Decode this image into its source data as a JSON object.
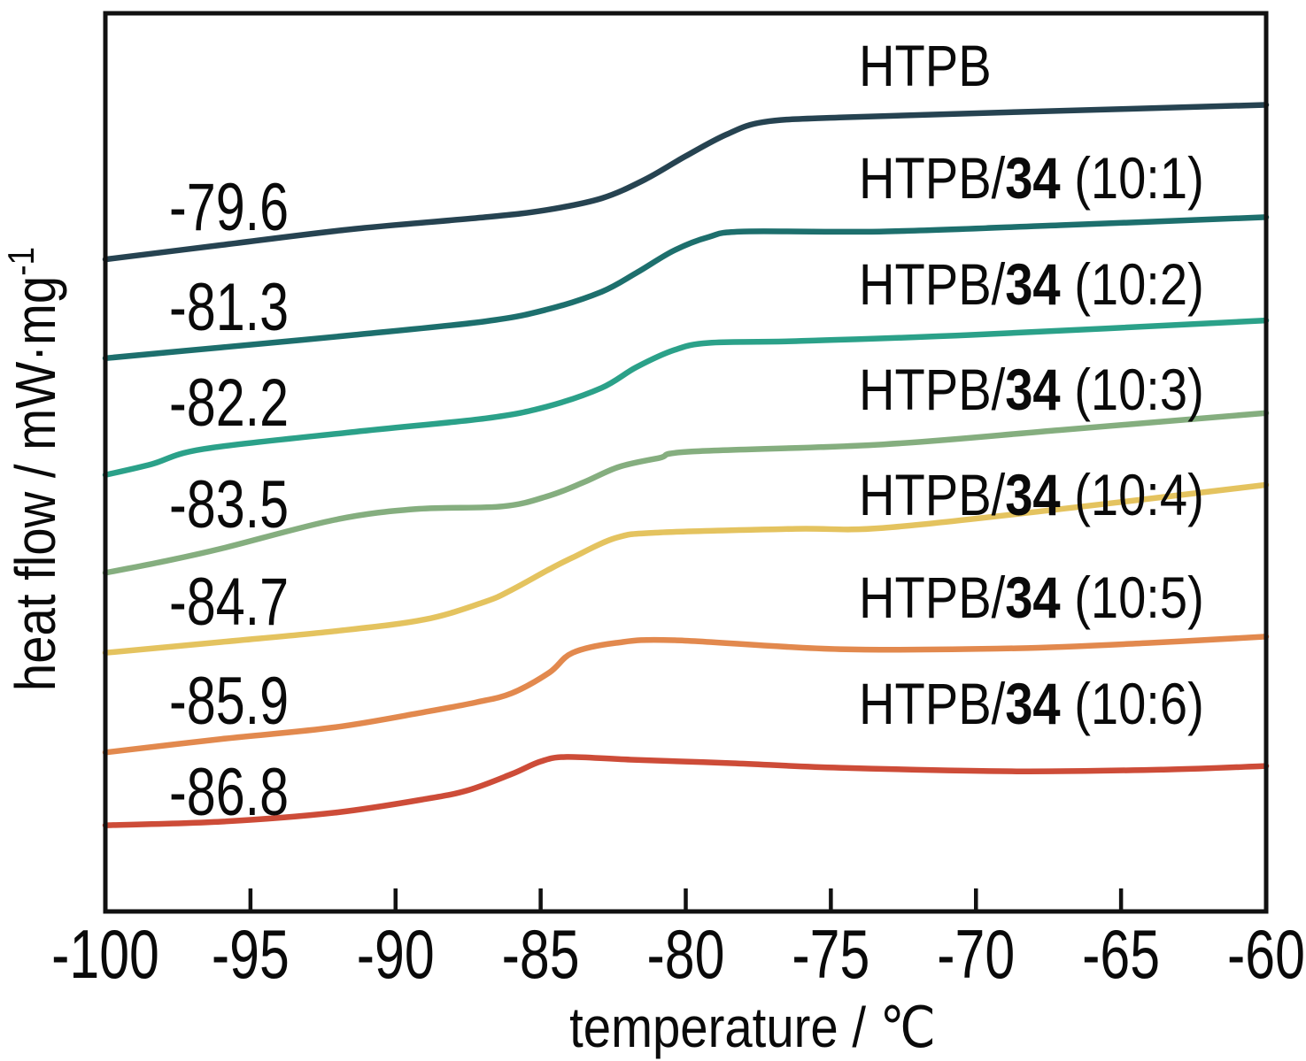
{
  "figure_title": "",
  "axis": {
    "x_label_main": "temperature / ",
    "x_label_unit": "℃",
    "y_label_main": "heat flow / mW·mg",
    "y_label_sup": "-1",
    "x_tick_labels": [
      "-100",
      "-95",
      "-90",
      "-85",
      "-80",
      "-75",
      "-70",
      "-65",
      "-60"
    ]
  },
  "tg_labels": [
    {
      "text": "-79.6"
    },
    {
      "text": "-81.3"
    },
    {
      "text": "-82.2"
    },
    {
      "text": "-83.5"
    },
    {
      "text": "-84.7"
    },
    {
      "text": "-85.9"
    },
    {
      "text": "-86.8"
    }
  ],
  "series_labels": [
    {
      "prefix": "HTPB",
      "bold": "",
      "suffix": ""
    },
    {
      "prefix": "HTPB/",
      "bold": "34",
      "suffix": " (10:1)"
    },
    {
      "prefix": "HTPB/",
      "bold": "34",
      "suffix": " (10:2)"
    },
    {
      "prefix": "HTPB/",
      "bold": "34",
      "suffix": " (10:3)"
    },
    {
      "prefix": "HTPB/",
      "bold": "34",
      "suffix": " (10:4)"
    },
    {
      "prefix": "HTPB/",
      "bold": "34",
      "suffix": " (10:5)"
    },
    {
      "prefix": "HTPB/",
      "bold": "34",
      "suffix": " (10:6)"
    }
  ],
  "chart_data": {
    "type": "line",
    "title": "DSC curves of HTPB and HTPB/34 blends",
    "xlabel": "temperature / ℃",
    "ylabel": "heat flow / mW·mg⁻¹",
    "xlim": [
      -100,
      -60
    ],
    "x_ticks": [
      -100,
      -95,
      -90,
      -85,
      -80,
      -75,
      -70,
      -65,
      -60
    ],
    "y_units": "arbitrary units (curves vertically offset; values normalized 0-1 of plot height)",
    "grid": false,
    "legend_position": "labels next to curves (right side)",
    "annotation_note": "numbers at left of each curve are glass transition temperatures Tg in °C",
    "series": [
      {
        "name": "HTPB",
        "tg_c": -79.6,
        "color": "#264351",
        "points": [
          [
            -100,
            0.726
          ],
          [
            -96,
            0.742
          ],
          [
            -91.4,
            0.76
          ],
          [
            -86.9,
            0.773
          ],
          [
            -84.8,
            0.781
          ],
          [
            -82.9,
            0.794
          ],
          [
            -81.4,
            0.815
          ],
          [
            -80.0,
            0.841
          ],
          [
            -78.6,
            0.865
          ],
          [
            -77.3,
            0.879
          ],
          [
            -74.7,
            0.884
          ],
          [
            -68.6,
            0.89
          ],
          [
            -60,
            0.898
          ]
        ]
      },
      {
        "name": "HTPB/34 (10:1)",
        "tg_c": -81.3,
        "color": "#1d6f6d",
        "points": [
          [
            -100,
            0.616
          ],
          [
            -96,
            0.628
          ],
          [
            -91.4,
            0.642
          ],
          [
            -86.9,
            0.657
          ],
          [
            -84.8,
            0.67
          ],
          [
            -82.9,
            0.69
          ],
          [
            -81.7,
            0.711
          ],
          [
            -80.4,
            0.736
          ],
          [
            -79.2,
            0.751
          ],
          [
            -78.0,
            0.757
          ],
          [
            -73.2,
            0.757
          ],
          [
            -67.1,
            0.764
          ],
          [
            -60,
            0.773
          ]
        ]
      },
      {
        "name": "HTPB/34 (10:2)",
        "tg_c": -82.2,
        "color": "#2ba189",
        "points": [
          [
            -100,
            0.486
          ],
          [
            -98.4,
            0.498
          ],
          [
            -96.6,
            0.515
          ],
          [
            -91.4,
            0.534
          ],
          [
            -86.9,
            0.549
          ],
          [
            -84.8,
            0.562
          ],
          [
            -82.9,
            0.583
          ],
          [
            -81.7,
            0.606
          ],
          [
            -80.4,
            0.625
          ],
          [
            -79.2,
            0.633
          ],
          [
            -76.2,
            0.635
          ],
          [
            -70.1,
            0.642
          ],
          [
            -60,
            0.658
          ]
        ]
      },
      {
        "name": "HTPB/34 (10:3)",
        "tg_c": -83.5,
        "color": "#85ae7f",
        "points": [
          [
            -100,
            0.377
          ],
          [
            -98.1,
            0.389
          ],
          [
            -96,
            0.404
          ],
          [
            -92.1,
            0.436
          ],
          [
            -89.3,
            0.448
          ],
          [
            -86.3,
            0.451
          ],
          [
            -84.7,
            0.463
          ],
          [
            -83.5,
            0.478
          ],
          [
            -82.3,
            0.495
          ],
          [
            -80.9,
            0.505
          ],
          [
            -79.8,
            0.512
          ],
          [
            -73.2,
            0.52
          ],
          [
            -67.1,
            0.536
          ],
          [
            -60,
            0.555
          ]
        ]
      },
      {
        "name": "HTPB/34 (10:4)",
        "tg_c": -84.7,
        "color": "#e4c35f",
        "points": [
          [
            -100,
            0.288
          ],
          [
            -96,
            0.3
          ],
          [
            -92.1,
            0.312
          ],
          [
            -89,
            0.325
          ],
          [
            -86.9,
            0.345
          ],
          [
            -86,
            0.358
          ],
          [
            -84.7,
            0.381
          ],
          [
            -83.9,
            0.394
          ],
          [
            -82.4,
            0.416
          ],
          [
            -80.9,
            0.422
          ],
          [
            -76.2,
            0.426
          ],
          [
            -73.2,
            0.427
          ],
          [
            -67.1,
            0.448
          ],
          [
            -60,
            0.475
          ]
        ]
      },
      {
        "name": "HTPB/34 (10:5)",
        "tg_c": -85.9,
        "color": "#e2894e",
        "points": [
          [
            -100,
            0.177
          ],
          [
            -96,
            0.192
          ],
          [
            -92.1,
            0.205
          ],
          [
            -89,
            0.222
          ],
          [
            -87.2,
            0.233
          ],
          [
            -86,
            0.243
          ],
          [
            -84.7,
            0.266
          ],
          [
            -83.9,
            0.288
          ],
          [
            -82.4,
            0.299
          ],
          [
            -80.4,
            0.302
          ],
          [
            -74.7,
            0.292
          ],
          [
            -68.6,
            0.293
          ],
          [
            -64,
            0.299
          ],
          [
            -60,
            0.306
          ]
        ]
      },
      {
        "name": "HTPB/34 (10:6)",
        "tg_c": -86.8,
        "color": "#cd4c38",
        "points": [
          [
            -100,
            0.096
          ],
          [
            -96,
            0.1
          ],
          [
            -92.1,
            0.11
          ],
          [
            -89,
            0.125
          ],
          [
            -87.5,
            0.135
          ],
          [
            -86,
            0.153
          ],
          [
            -85,
            0.167
          ],
          [
            -84.1,
            0.172
          ],
          [
            -81.9,
            0.169
          ],
          [
            -78.4,
            0.165
          ],
          [
            -74.7,
            0.16
          ],
          [
            -68.6,
            0.156
          ],
          [
            -63.4,
            0.158
          ],
          [
            -60,
            0.162
          ]
        ]
      }
    ]
  }
}
